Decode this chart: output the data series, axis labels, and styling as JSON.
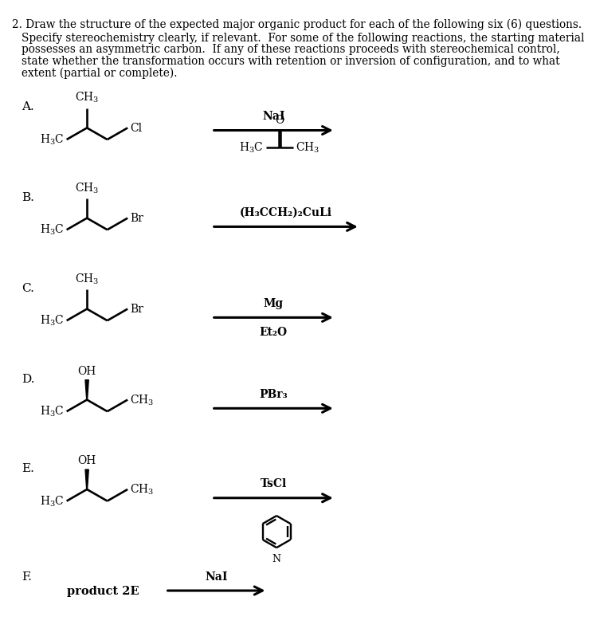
{
  "bg_color": "#ffffff",
  "title_line1": "2. Draw the structure of the expected major organic product for each of the following six (6) questions.",
  "subtitle_lines": [
    "Specify stereochemistry clearly, if relevant.  For some of the following reactions, the starting material",
    "possesses an asymmetric carbon.  If any of these reactions proceeds with stereochemical control,",
    "state whether the transformation occurs with retention or inversion of configuration, and to what",
    "extent (partial or complete)."
  ],
  "section_labels": [
    "A.",
    "B.",
    "C.",
    "D.",
    "E.",
    "F."
  ],
  "reagent_A_above": "NaI",
  "reagent_B_above": "(H₃CCH₂)₂CuLi",
  "reagent_C_above": "Mg",
  "reagent_C_below": "Et₂O",
  "reagent_D_above": "PBr₃",
  "reagent_E_above": "TsCl",
  "reagent_F_above": "NaI",
  "label_F": "product 2E"
}
